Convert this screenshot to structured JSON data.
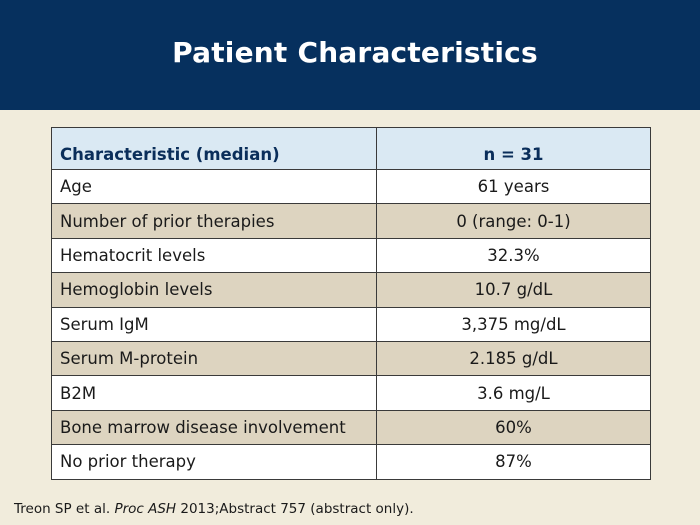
{
  "slide": {
    "title": "Patient Characteristics"
  },
  "table": {
    "headers": [
      "Characteristic (median)",
      "n = 31"
    ],
    "rows": [
      {
        "characteristic": "Age",
        "value": "61 years"
      },
      {
        "characteristic": "Number of prior therapies",
        "value": "0 (range: 0-1)"
      },
      {
        "characteristic": "Hematocrit levels",
        "value": "32.3%"
      },
      {
        "characteristic": "Hemoglobin levels",
        "value": "10.7 g/dL"
      },
      {
        "characteristic": "Serum IgM",
        "value": "3,375 mg/dL"
      },
      {
        "characteristic": "Serum M-protein",
        "value": "2.185 g/dL"
      },
      {
        "characteristic": "B2M",
        "value": "3.6 mg/L"
      },
      {
        "characteristic": "Bone marrow disease involvement",
        "value": "60%"
      },
      {
        "characteristic": "No prior therapy",
        "value": "87%"
      }
    ]
  },
  "footnote": {
    "authors": "Treon SP et al. ",
    "journal": "Proc ASH",
    "rest": " 2013;Abstract 757 (abstract only)."
  },
  "colors": {
    "header_bg": "#06305e",
    "page_bg": "#f1ecdc",
    "table_header_bg": "#dae9f3",
    "row_alt_bg": "#ddd4c0",
    "header_text": "#0a2e5a"
  }
}
